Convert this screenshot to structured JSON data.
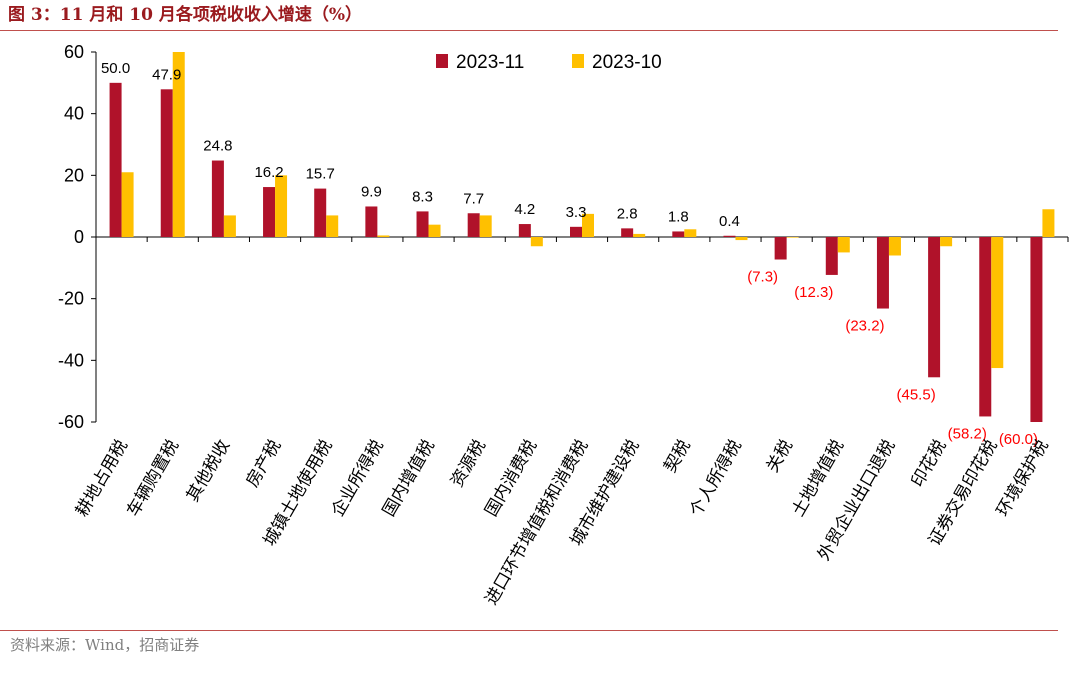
{
  "figure": {
    "title": "图 3：11 月和 10 月各项税收收入增速（%）",
    "source": "资料来源：Wind，招商证券"
  },
  "chart_data": {
    "type": "bar",
    "ylim": [
      -60,
      60
    ],
    "yticks": [
      60,
      40,
      20,
      0,
      -20,
      -40,
      -60
    ],
    "grid": false,
    "legend_position": "top-center",
    "categories": [
      "耕地占用税",
      "车辆购置税",
      "其他税收",
      "房产税",
      "城镇土地使用税",
      "企业所得税",
      "国内增值税",
      "资源税",
      "国内消费税",
      "进口环节增值税和消费税",
      "城市维护建设税",
      "契税",
      "个人所得税",
      "关税",
      "土地增值税",
      "外贸企业出口退税",
      "印花税",
      "证券交易印花税",
      "环境保护税"
    ],
    "series": [
      {
        "name": "2023-11",
        "color": "#b0122a",
        "values": [
          50.0,
          47.9,
          24.8,
          16.2,
          15.7,
          9.9,
          8.3,
          7.7,
          4.2,
          3.3,
          2.8,
          1.8,
          0.4,
          -7.3,
          -12.3,
          -23.2,
          -45.5,
          -58.2,
          -60.0
        ],
        "labels": [
          "50.0",
          "47.9",
          "24.8",
          "16.2",
          "15.7",
          "9.9",
          "8.3",
          "7.7",
          "4.2",
          "3.3",
          "2.8",
          "1.8",
          "0.4",
          "(7.3)",
          "(12.3)",
          "(23.2)",
          "(45.5)",
          "(58.2)",
          "(60.0)"
        ]
      },
      {
        "name": "2023-10",
        "color": "#ffc000",
        "values": [
          21.0,
          60.0,
          7.0,
          20.0,
          7.0,
          0.5,
          4.0,
          7.0,
          -3.0,
          7.5,
          1.0,
          2.5,
          -1.0,
          0,
          -5.0,
          -6.0,
          -3.0,
          -42.5,
          9.0
        ]
      }
    ],
    "negative_label_color": "#ff0000",
    "positive_label_color": "#000000"
  }
}
